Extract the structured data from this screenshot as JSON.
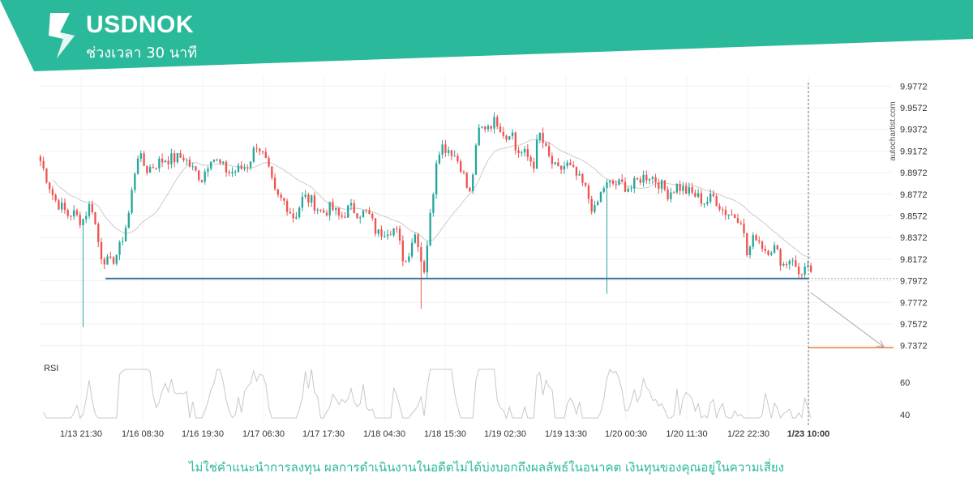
{
  "header": {
    "symbol": "USDNOK",
    "timeframe": "ช่วงเวลา 30 นาที",
    "brand_color": "#2ab99a",
    "logo_icon": "autochartist-logo-icon"
  },
  "watermark": "autochartist.com",
  "disclaimer": "ไม่ใช่คำแนะนำการลงทุน ผลการดำเนินงานในอดีตไม่ได้บ่งบอกถึงผลลัพธ์ในอนาคต เงินทุนของคุณอยู่ในความเสี่ยง",
  "chart_data": [
    {
      "type": "candlestick",
      "ylim": [
        9.7272,
        9.9872
      ],
      "y_ticks": [
        "9.9772",
        "9.9572",
        "9.9372",
        "9.9172",
        "9.8972",
        "9.8772",
        "9.8572",
        "9.8372",
        "9.8172",
        "9.7972",
        "9.7772",
        "9.7572",
        "9.7372"
      ],
      "x_ticks": [
        "1/13 21:30",
        "1/16 08:30",
        "1/16 19:30",
        "1/17 06:30",
        "1/17 17:30",
        "1/18 04:30",
        "1/18 15:30",
        "1/19 02:30",
        "1/19 13:30",
        "1/20 00:30",
        "1/20 11:30",
        "1/22 22:30",
        "1/23 10:00"
      ],
      "current_time_label": "1/23 10:00",
      "up_color": "#26a69a",
      "down_color": "#ef5350",
      "candle_count": 254,
      "price_path": [
        [
          0,
          9.908
        ],
        [
          6,
          9.873
        ],
        [
          12,
          9.858
        ],
        [
          14,
          9.86
        ],
        [
          18,
          9.852
        ],
        [
          22,
          9.87
        ],
        [
          26,
          9.822
        ],
        [
          30,
          9.812
        ],
        [
          34,
          9.825
        ],
        [
          38,
          9.855
        ],
        [
          42,
          9.915
        ],
        [
          46,
          9.9
        ],
        [
          50,
          9.905
        ],
        [
          54,
          9.91
        ],
        [
          58,
          9.91
        ],
        [
          62,
          9.912
        ],
        [
          66,
          9.9
        ],
        [
          70,
          9.892
        ],
        [
          74,
          9.913
        ],
        [
          78,
          9.904
        ],
        [
          82,
          9.897
        ],
        [
          86,
          9.9
        ],
        [
          90,
          9.905
        ],
        [
          94,
          9.925
        ],
        [
          98,
          9.905
        ],
        [
          102,
          9.875
        ],
        [
          106,
          9.87
        ],
        [
          110,
          9.855
        ],
        [
          114,
          9.875
        ],
        [
          118,
          9.87
        ],
        [
          122,
          9.86
        ],
        [
          126,
          9.865
        ],
        [
          130,
          9.855
        ],
        [
          134,
          9.865
        ],
        [
          138,
          9.86
        ],
        [
          142,
          9.86
        ],
        [
          146,
          9.84
        ],
        [
          150,
          9.845
        ],
        [
          154,
          9.845
        ],
        [
          158,
          9.812
        ],
        [
          162,
          9.842
        ],
        [
          164,
          9.832
        ],
        [
          166,
          9.802
        ],
        [
          170,
          9.875
        ],
        [
          172,
          9.918
        ],
        [
          174,
          9.922
        ],
        [
          178,
          9.918
        ],
        [
          182,
          9.905
        ],
        [
          186,
          9.875
        ],
        [
          190,
          9.936
        ],
        [
          194,
          9.942
        ],
        [
          198,
          9.945
        ],
        [
          202,
          9.93
        ],
        [
          204,
          9.94
        ],
        [
          206,
          9.918
        ],
        [
          210,
          9.914
        ],
        [
          214,
          9.905
        ],
        [
          216,
          9.935
        ],
        [
          220,
          9.912
        ],
        [
          224,
          9.898
        ],
        [
          228,
          9.905
        ],
        [
          232,
          9.895
        ],
        [
          236,
          9.883
        ],
        [
          240,
          9.86
        ],
        [
          244,
          9.884
        ],
        [
          248,
          9.887
        ],
        [
          252,
          9.886
        ],
        [
          256,
          9.883
        ],
        [
          260,
          9.892
        ],
        [
          264,
          9.895
        ],
        [
          268,
          9.888
        ],
        [
          272,
          9.878
        ],
        [
          276,
          9.885
        ],
        [
          280,
          9.88
        ],
        [
          284,
          9.876
        ],
        [
          288,
          9.87
        ],
        [
          292,
          9.875
        ],
        [
          296,
          9.862
        ],
        [
          300,
          9.858
        ],
        [
          304,
          9.855
        ],
        [
          306,
          9.82
        ],
        [
          310,
          9.84
        ],
        [
          314,
          9.826
        ],
        [
          318,
          9.828
        ],
        [
          322,
          9.812
        ],
        [
          326,
          9.82
        ],
        [
          328,
          9.802
        ],
        [
          332,
          9.81
        ],
        [
          334,
          9.8
        ]
      ],
      "rsi_panel": {
        "label": "RSI",
        "ylim": [
          35,
          70
        ],
        "y_ticks": [
          "60",
          "40"
        ],
        "line_color": "#c8c8c8"
      },
      "support_level": 9.7992,
      "support_color": "#3d6fa0",
      "target_level": 9.7352,
      "target_color": "#e8742a",
      "moving_average_color": "#cccccc"
    }
  ]
}
